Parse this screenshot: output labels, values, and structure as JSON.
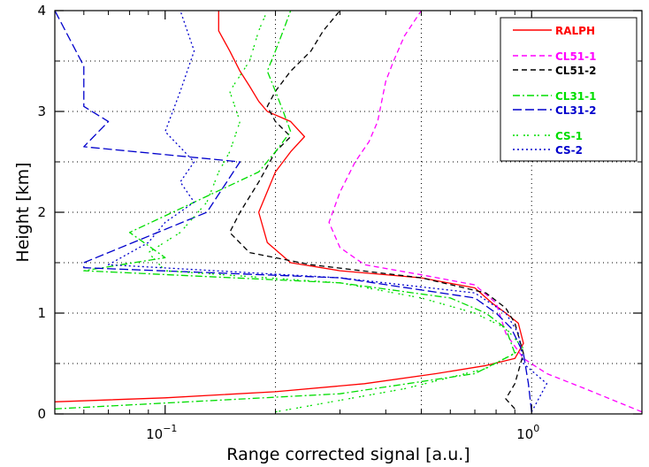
{
  "chart_data": {
    "type": "line",
    "title": "",
    "xlabel": "Range corrected signal [a.u.]",
    "ylabel": "Height [km]",
    "x_scale": "log",
    "xlim": [
      0.05,
      2.0
    ],
    "ylim": [
      0,
      4
    ],
    "grid": true,
    "legend_position": "top-right",
    "x_ticks": [
      {
        "value": 0.1,
        "base": "10",
        "exp": "−1"
      },
      {
        "value": 1.0,
        "base": "10",
        "exp": "0"
      }
    ],
    "y_ticks": [
      {
        "value": 0,
        "label": "0"
      },
      {
        "value": 1,
        "label": "1"
      },
      {
        "value": 2,
        "label": "2"
      },
      {
        "value": 3,
        "label": "3"
      },
      {
        "value": 4,
        "label": "4"
      }
    ],
    "x_grid": [
      0.2,
      0.5,
      1.0,
      2.0
    ],
    "y_grid": [
      0.5,
      1.0,
      1.5,
      2.0,
      2.5,
      3.0,
      3.5
    ],
    "series": [
      {
        "name": "RALPH",
        "color": "#ff0000",
        "dash": "solid",
        "x": [
          0.05,
          0.1,
          0.2,
          0.35,
          0.55,
          0.75,
          0.9,
          0.95,
          0.92,
          0.85,
          0.78,
          0.7,
          0.5,
          0.3,
          0.22,
          0.19,
          0.18,
          0.2,
          0.22,
          0.24,
          0.22,
          0.19,
          0.18,
          0.17,
          0.16,
          0.15,
          0.14,
          0.14
        ],
        "y": [
          0.12,
          0.16,
          0.22,
          0.3,
          0.4,
          0.48,
          0.55,
          0.7,
          0.9,
          1.0,
          1.1,
          1.25,
          1.35,
          1.42,
          1.5,
          1.7,
          2.0,
          2.4,
          2.6,
          2.75,
          2.9,
          3.0,
          3.1,
          3.25,
          3.4,
          3.6,
          3.8,
          4.0
        ]
      },
      {
        "name": "CL51-1",
        "color": "#ff00ff",
        "dash": "6,4",
        "x": [
          2.0,
          1.4,
          1.1,
          0.95,
          0.85,
          0.8,
          0.7,
          0.5,
          0.35,
          0.3,
          0.28,
          0.3,
          0.33,
          0.36,
          0.38,
          0.39,
          0.4,
          0.42,
          0.45,
          0.5
        ],
        "y": [
          0.02,
          0.25,
          0.4,
          0.55,
          0.8,
          1.1,
          1.28,
          1.38,
          1.48,
          1.65,
          1.9,
          2.2,
          2.5,
          2.7,
          2.9,
          3.1,
          3.3,
          3.5,
          3.75,
          4.0
        ]
      },
      {
        "name": "CL51-2",
        "color": "#000000",
        "dash": "6,4",
        "x": [
          0.9,
          0.85,
          0.9,
          0.95,
          0.9,
          0.85,
          0.75,
          0.5,
          0.25,
          0.17,
          0.15,
          0.16,
          0.18,
          0.2,
          0.22,
          0.2,
          0.19,
          0.2,
          0.22,
          0.25,
          0.27,
          0.3
        ],
        "y": [
          0.05,
          0.15,
          0.3,
          0.6,
          0.9,
          1.05,
          1.2,
          1.35,
          1.48,
          1.6,
          1.8,
          2.0,
          2.3,
          2.6,
          2.75,
          2.9,
          3.05,
          3.2,
          3.4,
          3.6,
          3.8,
          4.0
        ]
      },
      {
        "name": "CL31-1",
        "color": "#00dd00",
        "dash": "8,3,2,3",
        "x": [
          0.05,
          0.3,
          0.7,
          0.9,
          0.85,
          0.75,
          0.6,
          0.3,
          0.06,
          0.1,
          0.08,
          0.12,
          0.18,
          0.2,
          0.22,
          0.21,
          0.2,
          0.19,
          0.2,
          0.21,
          0.22
        ],
        "y": [
          0.05,
          0.2,
          0.4,
          0.6,
          0.85,
          1.0,
          1.15,
          1.3,
          1.42,
          1.55,
          1.8,
          2.1,
          2.4,
          2.6,
          2.8,
          3.0,
          3.2,
          3.4,
          3.6,
          3.8,
          4.0
        ]
      },
      {
        "name": "CL31-2",
        "color": "#0000cc",
        "dash": "10,4",
        "x": [
          1.0,
          0.98,
          0.95,
          0.88,
          0.8,
          0.7,
          0.3,
          0.06,
          0.06,
          0.13,
          0.16,
          0.06,
          0.07,
          0.06,
          0.06,
          0.05
        ],
        "y": [
          0.02,
          0.3,
          0.6,
          0.85,
          1.0,
          1.15,
          1.35,
          1.45,
          1.5,
          2.0,
          2.5,
          2.65,
          2.9,
          3.05,
          3.45,
          4.0
        ]
      },
      {
        "name": "CS-1",
        "color": "#00dd00",
        "dash": "2,2,2,6",
        "x": [
          0.2,
          0.45,
          0.75,
          0.95,
          0.85,
          0.7,
          0.5,
          0.3,
          0.1,
          0.09,
          0.11,
          0.13,
          0.14,
          0.15,
          0.16,
          0.15,
          0.17,
          0.18,
          0.19
        ],
        "y": [
          0.02,
          0.25,
          0.45,
          0.65,
          0.85,
          1.0,
          1.15,
          1.3,
          1.42,
          1.6,
          1.8,
          2.1,
          2.4,
          2.6,
          2.9,
          3.2,
          3.5,
          3.8,
          4.0
        ]
      },
      {
        "name": "CS-2",
        "color": "#0000cc",
        "dash": "2,3",
        "x": [
          1.0,
          1.1,
          0.95,
          0.92,
          0.85,
          0.7,
          0.3,
          0.07,
          0.09,
          0.1,
          0.12,
          0.11,
          0.12,
          0.1,
          0.11,
          0.12,
          0.11
        ],
        "y": [
          0.02,
          0.3,
          0.5,
          0.8,
          1.0,
          1.2,
          1.35,
          1.48,
          1.7,
          1.9,
          2.1,
          2.3,
          2.5,
          2.8,
          3.2,
          3.6,
          4.0
        ]
      }
    ]
  }
}
